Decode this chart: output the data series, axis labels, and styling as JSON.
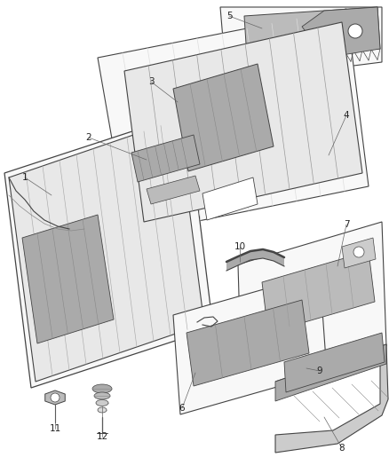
{
  "bg_color": "#ffffff",
  "line_color": "#444444",
  "sheet_color": "#f8f8f8",
  "part_dark": "#888888",
  "part_mid": "#aaaaaa",
  "part_light": "#cccccc",
  "label_color": "#222222",
  "callout_color": "#666666"
}
